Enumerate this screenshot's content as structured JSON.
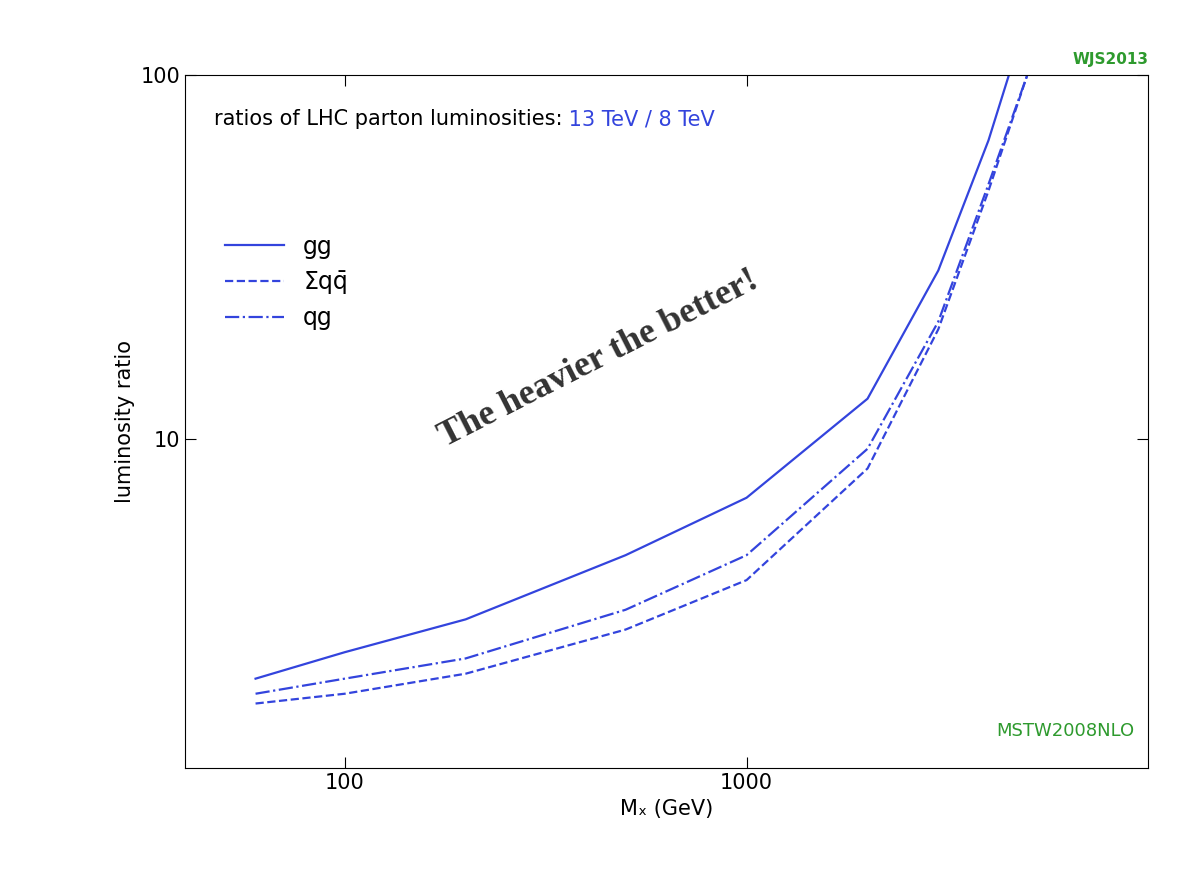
{
  "chart_data": {
    "type": "line",
    "title": "ratios of LHC parton luminosities: 13 TeV / 8 TeV",
    "x_label": "Mₓ (GeV)",
    "y_label": "luminosity ratio",
    "annotations": [
      "WJS2013",
      "MSTW2008NLO",
      "The heavier the better!"
    ],
    "log": true,
    "legend": "upper left",
    "xlim": [
      40,
      10000
    ],
    "ylim": [
      1.25,
      100
    ],
    "xticks": [
      100,
      1000
    ],
    "yticks": [
      10,
      100
    ],
    "series": [
      {
        "name": "gg",
        "color": "#3344dd",
        "line_style": "solid",
        "x": [
          60,
          100,
          200,
          500,
          1000,
          2000,
          3000,
          4000,
          4500
        ],
        "values": [
          2.2,
          2.6,
          3.2,
          4.8,
          6.9,
          12.9,
          29,
          66,
          100
        ]
      },
      {
        "name": "Σqq̄",
        "color": "#3344dd",
        "line_style": "dashed",
        "x": [
          60,
          100,
          200,
          500,
          1000,
          2000,
          3000,
          4000,
          5000
        ],
        "values": [
          1.88,
          2.0,
          2.27,
          3.0,
          4.1,
          8.3,
          20,
          48,
          100
        ]
      },
      {
        "name": "qg",
        "color": "#3344dd",
        "line_style": "dashdot",
        "x": [
          60,
          100,
          200,
          500,
          1000,
          2000,
          3000,
          4000,
          5000
        ],
        "values": [
          2.0,
          2.2,
          2.5,
          3.4,
          4.8,
          9.4,
          21,
          50,
          100
        ]
      }
    ]
  }
}
